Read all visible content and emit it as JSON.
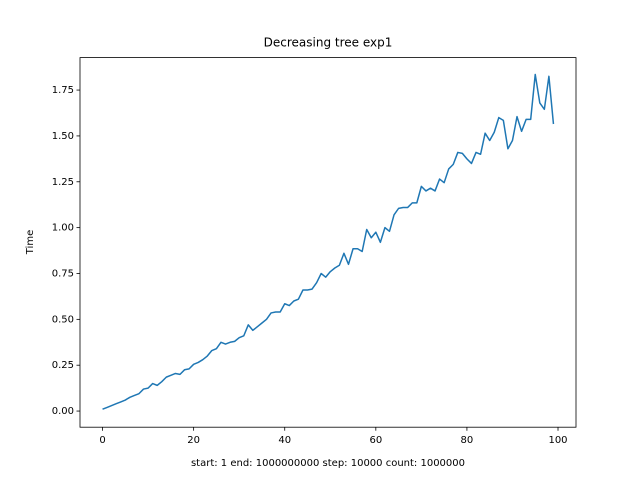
{
  "chart_data": {
    "type": "line",
    "title": "Decreasing tree exp1",
    "xlabel": "start: 1 end: 1000000000 step: 10000 count: 1000000",
    "ylabel": "Time",
    "x": [
      0,
      1,
      2,
      3,
      4,
      5,
      6,
      7,
      8,
      9,
      10,
      11,
      12,
      13,
      14,
      15,
      16,
      17,
      18,
      19,
      20,
      21,
      22,
      23,
      24,
      25,
      26,
      27,
      28,
      29,
      30,
      31,
      32,
      33,
      34,
      35,
      36,
      37,
      38,
      39,
      40,
      41,
      42,
      43,
      44,
      45,
      46,
      47,
      48,
      49,
      50,
      51,
      52,
      53,
      54,
      55,
      56,
      57,
      58,
      59,
      60,
      61,
      62,
      63,
      64,
      65,
      66,
      67,
      68,
      69,
      70,
      71,
      72,
      73,
      74,
      75,
      76,
      77,
      78,
      79,
      80,
      81,
      82,
      83,
      84,
      85,
      86,
      87,
      88,
      89,
      90,
      91,
      92,
      93,
      94,
      95,
      96,
      97,
      98,
      99
    ],
    "series": [
      {
        "color": "#1f77b4",
        "values": [
          0.01,
          0.02,
          0.03,
          0.04,
          0.05,
          0.06,
          0.075,
          0.085,
          0.095,
          0.12,
          0.125,
          0.15,
          0.14,
          0.16,
          0.185,
          0.195,
          0.205,
          0.2,
          0.225,
          0.23,
          0.255,
          0.265,
          0.28,
          0.3,
          0.33,
          0.34,
          0.375,
          0.365,
          0.375,
          0.38,
          0.4,
          0.41,
          0.47,
          0.44,
          0.46,
          0.48,
          0.5,
          0.535,
          0.54,
          0.54,
          0.585,
          0.575,
          0.6,
          0.61,
          0.66,
          0.66,
          0.665,
          0.7,
          0.75,
          0.73,
          0.76,
          0.78,
          0.795,
          0.86,
          0.8,
          0.885,
          0.885,
          0.87,
          0.99,
          0.945,
          0.975,
          0.92,
          1.0,
          0.98,
          1.07,
          1.105,
          1.11,
          1.11,
          1.135,
          1.135,
          1.225,
          1.2,
          1.215,
          1.2,
          1.265,
          1.245,
          1.32,
          1.345,
          1.41,
          1.405,
          1.375,
          1.35,
          1.41,
          1.4,
          1.515,
          1.475,
          1.52,
          1.6,
          1.585,
          1.43,
          1.475,
          1.605,
          1.525,
          1.59,
          1.59,
          1.835,
          1.68,
          1.645,
          1.825,
          1.565
        ]
      }
    ],
    "xlim": [
      -4.95,
      103.95
    ],
    "xticks": [
      0,
      20,
      40,
      60,
      80,
      100
    ],
    "ylim": [
      -0.088,
      1.927
    ],
    "yticks": [
      {
        "value": 0,
        "label": "0.00"
      },
      {
        "value": 0.25,
        "label": "0.25"
      },
      {
        "value": 0.5,
        "label": "0.50"
      },
      {
        "value": 0.75,
        "label": "0.75"
      },
      {
        "value": 1,
        "label": "1.00"
      },
      {
        "value": 1.25,
        "label": "1.25"
      },
      {
        "value": 1.5,
        "label": "1.50"
      },
      {
        "value": 1.75,
        "label": "1.75"
      }
    ]
  }
}
